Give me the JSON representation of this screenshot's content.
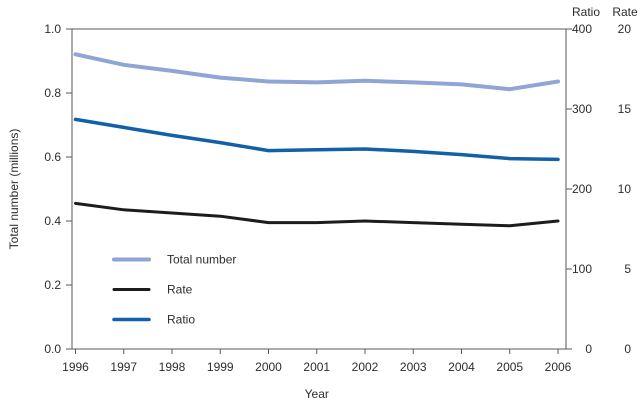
{
  "chart_data": {
    "type": "line",
    "x": [
      1996,
      1997,
      1998,
      1999,
      2000,
      2001,
      2002,
      2003,
      2004,
      2005,
      2006
    ],
    "xlabel": "Year",
    "grid": "off",
    "left_axis": {
      "label": "Total number (millions)",
      "min": 0,
      "max": 1.0,
      "tick_labels": [
        "0.0",
        "0.2",
        "0.4",
        "0.6",
        "0.8",
        "1.0"
      ]
    },
    "right_axes": [
      {
        "name": "Ratio",
        "min": 0,
        "max": 400,
        "tick_labels": [
          "0",
          "100",
          "200",
          "300",
          "400"
        ]
      },
      {
        "name": "Rate",
        "min": 0,
        "max": 20,
        "tick_labels": [
          "0",
          "5",
          "10",
          "15",
          "20"
        ]
      }
    ],
    "series": [
      {
        "name": "Total number",
        "axis": "left",
        "color": "#8ea5d6",
        "stroke_width": 4,
        "values": [
          0.921,
          0.888,
          0.869,
          0.848,
          0.836,
          0.833,
          0.838,
          0.833,
          0.827,
          0.812,
          0.836
        ]
      },
      {
        "name": "Rate",
        "axis": "rate",
        "color": "#1c1c1c",
        "stroke_width": 3,
        "values": [
          9.1,
          8.7,
          8.5,
          8.3,
          7.9,
          7.9,
          8.0,
          7.9,
          7.8,
          7.7,
          8.0
        ]
      },
      {
        "name": "Ratio",
        "axis": "ratio",
        "color": "#1160a8",
        "stroke_width": 3.5,
        "values": [
          287,
          277,
          267,
          258,
          248,
          249,
          250,
          247,
          243,
          238,
          237
        ]
      }
    ],
    "legend": {
      "position": "inside-lower-left",
      "entries": [
        "Total number",
        "Rate",
        "Ratio"
      ]
    }
  },
  "colors": {
    "frame": "#58595b",
    "text": "#2d2d2d",
    "background": "#ffffff",
    "total_number_line": "#8ea5d6",
    "rate_line": "#1c1c1c",
    "ratio_line": "#1160a8"
  }
}
